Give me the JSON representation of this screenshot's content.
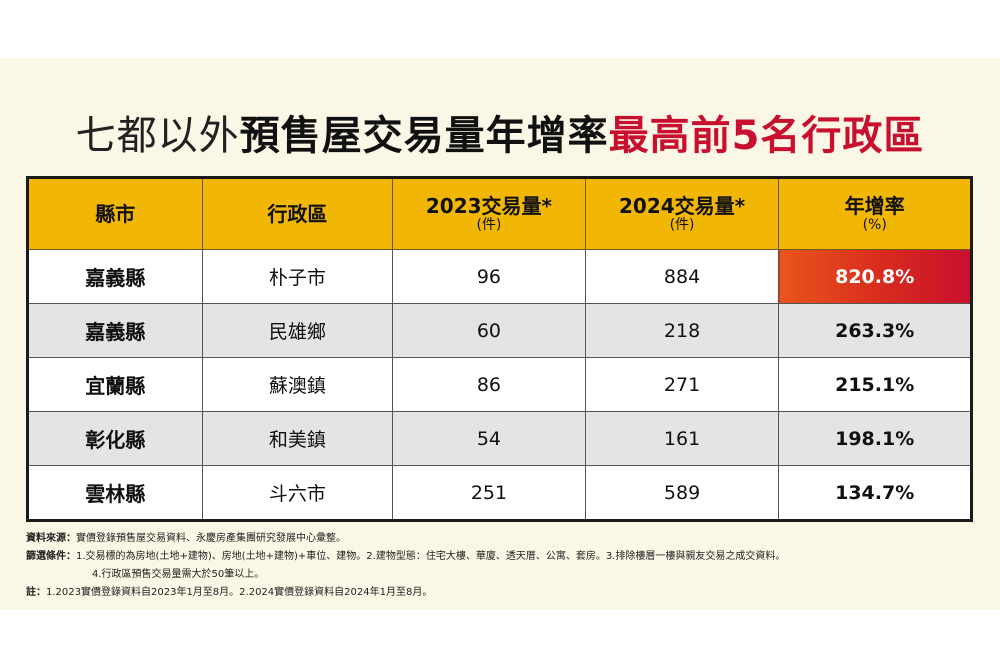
{
  "title": {
    "part1": "七都以外",
    "part2": "預售屋交易量年增率",
    "part3": "最高前5名行政區"
  },
  "table": {
    "headers": [
      {
        "main": "縣市",
        "sub": ""
      },
      {
        "main": "行政區",
        "sub": ""
      },
      {
        "main": "2023交易量*",
        "sub": "(件)"
      },
      {
        "main": "2024交易量*",
        "sub": "(件)"
      },
      {
        "main": "年增率",
        "sub": "(%)"
      }
    ],
    "rows": [
      {
        "county": "嘉義縣",
        "district": "朴子市",
        "v2023": "96",
        "v2024": "884",
        "growth": "820.8%"
      },
      {
        "county": "嘉義縣",
        "district": "民雄鄉",
        "v2023": "60",
        "v2024": "218",
        "growth": "263.3%"
      },
      {
        "county": "宜蘭縣",
        "district": "蘇澳鎮",
        "v2023": "86",
        "v2024": "271",
        "growth": "215.1%"
      },
      {
        "county": "彰化縣",
        "district": "和美鎮",
        "v2023": "54",
        "v2024": "161",
        "growth": "198.1%"
      },
      {
        "county": "雲林縣",
        "district": "斗六市",
        "v2023": "251",
        "v2024": "589",
        "growth": "134.7%"
      }
    ]
  },
  "notes": {
    "source_label": "資料來源：",
    "source_text": "實價登錄預售屋交易資料、永慶房產集團研究發展中心彙整。",
    "filter_label": "篩選條件：",
    "filter_line1": "1.交易標的為房地(土地+建物)、房地(土地+建物)+車位、建物。2.建物型態：住宅大樓、華廈、透天厝、公寓、套房。3.排除樓層一樓與親友交易之成交資料。",
    "filter_line2": "4.行政區預售交易量需大於50筆以上。",
    "note_label": "註：",
    "note_text": "1.2023實價登錄資料自2023年1月至8月。2.2024實價登錄資料自2024年1月至8月。"
  },
  "colors": {
    "header_bg": "#f2b705",
    "highlight": "#c8102e",
    "panel_bg": "#fbf7e6"
  }
}
